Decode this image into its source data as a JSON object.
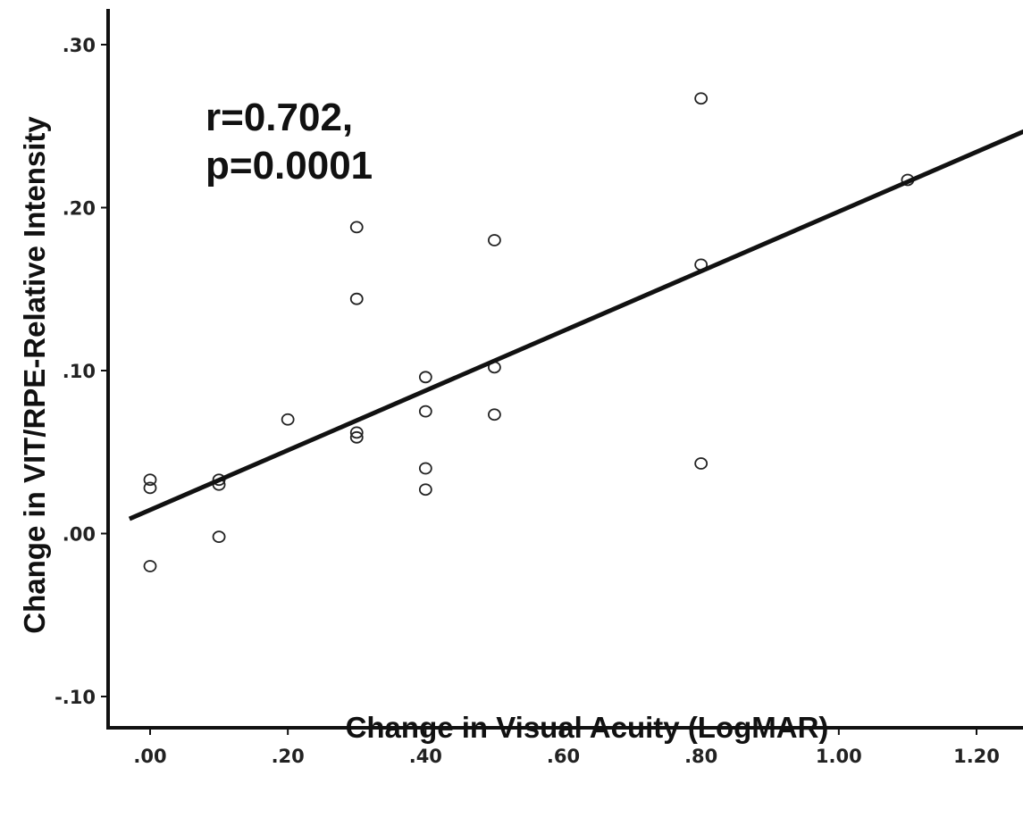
{
  "chart_data": {
    "type": "scatter",
    "title": "",
    "xlabel": "Change in Visual Acuity (LogMAR)",
    "ylabel": "Change in VIT/RPE-Relative Intensity",
    "xlim": [
      -0.03,
      1.27
    ],
    "ylim": [
      -0.12,
      0.32
    ],
    "x_ticks": [
      0.0,
      0.2,
      0.4,
      0.6,
      0.8,
      1.0,
      1.2
    ],
    "x_tick_labels": [
      ".00",
      ".20",
      ".40",
      ".60",
      ".80",
      "1.00",
      "1.20"
    ],
    "y_ticks": [
      -0.1,
      0.0,
      0.1,
      0.2,
      0.3
    ],
    "y_tick_labels": [
      "-.10",
      ".00",
      ".10",
      ".20",
      ".30"
    ],
    "grid": false,
    "legend": false,
    "annotations": [
      "r=0.702,",
      "p=0.0001"
    ],
    "points": [
      {
        "x": 0.0,
        "y": 0.033
      },
      {
        "x": 0.0,
        "y": 0.028
      },
      {
        "x": 0.0,
        "y": -0.02
      },
      {
        "x": 0.1,
        "y": 0.033
      },
      {
        "x": 0.1,
        "y": 0.03
      },
      {
        "x": 0.1,
        "y": -0.002
      },
      {
        "x": 0.2,
        "y": 0.07
      },
      {
        "x": 0.3,
        "y": 0.188
      },
      {
        "x": 0.3,
        "y": 0.144
      },
      {
        "x": 0.3,
        "y": 0.062
      },
      {
        "x": 0.3,
        "y": 0.059
      },
      {
        "x": 0.4,
        "y": 0.096
      },
      {
        "x": 0.4,
        "y": 0.075
      },
      {
        "x": 0.4,
        "y": 0.04
      },
      {
        "x": 0.4,
        "y": 0.027
      },
      {
        "x": 0.5,
        "y": 0.18
      },
      {
        "x": 0.5,
        "y": 0.102
      },
      {
        "x": 0.5,
        "y": 0.073
      },
      {
        "x": 0.8,
        "y": 0.267
      },
      {
        "x": 0.8,
        "y": 0.165
      },
      {
        "x": 0.8,
        "y": 0.043
      },
      {
        "x": 1.1,
        "y": 0.217
      }
    ],
    "fit_line": {
      "x": [
        -0.03,
        1.27
      ],
      "y": [
        0.009,
        0.247
      ]
    },
    "colors": {
      "axis": "#111111",
      "marker_stroke": "#222222",
      "fit_line": "#111111",
      "text": "#111111"
    }
  }
}
